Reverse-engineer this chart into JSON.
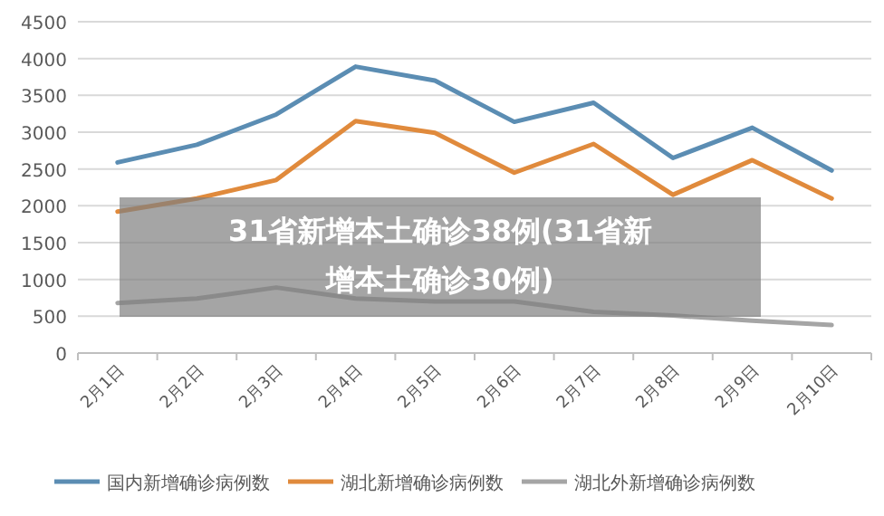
{
  "chart_data": {
    "type": "line",
    "title": "31省新增本土确诊38例(31省新增本土确诊30例)",
    "categories": [
      "2月1日",
      "2月2日",
      "2月3日",
      "2月4日",
      "2月5日",
      "2月6日",
      "2月7日",
      "2月8日",
      "2月9日",
      "2月10日"
    ],
    "series": [
      {
        "name": "国内新增确诊病例数",
        "color": "#5b8db3",
        "values": [
          2590,
          2830,
          3240,
          3890,
          3700,
          3140,
          3400,
          2650,
          3060,
          2480
        ]
      },
      {
        "name": "湖北新增确诊病例数",
        "color": "#e08a3c",
        "values": [
          1920,
          2100,
          2350,
          3150,
          2990,
          2450,
          2840,
          2150,
          2620,
          2100
        ]
      },
      {
        "name": "湖北外新增确诊病例数",
        "color": "#a5a5a5",
        "values": [
          680,
          740,
          890,
          740,
          700,
          700,
          560,
          510,
          440,
          380
        ]
      }
    ],
    "ylim": [
      0,
      4500
    ],
    "yticks": [
      0,
      500,
      1000,
      1500,
      2000,
      2500,
      3000,
      3500,
      4000,
      4500
    ],
    "grid": "y",
    "legend": "bottom",
    "marker": "none",
    "line_style": "solid"
  }
}
